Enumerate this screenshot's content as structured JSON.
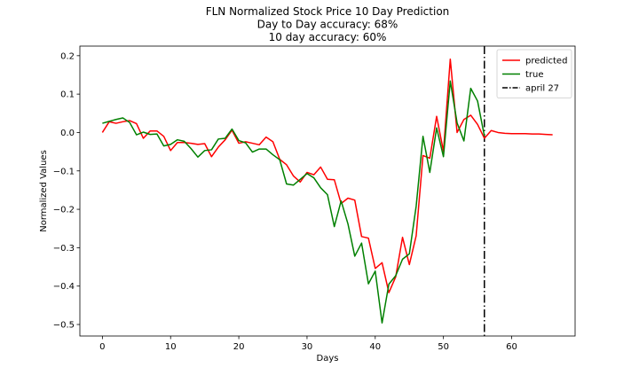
{
  "chart_data": {
    "type": "line",
    "title_lines": [
      "FLN Normalized Stock Price 10 Day Prediction",
      "Day to Day accuracy: 68%",
      "10 day accuracy: 60%"
    ],
    "xlabel": "Days",
    "ylabel": "Normalized Values",
    "xlim": [
      -3.3,
      69.3
    ],
    "ylim": [
      -0.53,
      0.225
    ],
    "xticks": [
      0,
      10,
      20,
      30,
      40,
      50,
      60
    ],
    "yticks": [
      0.2,
      0.1,
      0.0,
      -0.1,
      -0.2,
      -0.3,
      -0.4,
      -0.5
    ],
    "ytick_labels": [
      "0.2",
      "0.1",
      "0.0",
      "−0.1",
      "−0.2",
      "−0.3",
      "−0.4",
      "−0.5"
    ],
    "legend_position": "top-right",
    "series": [
      {
        "name": "predicted",
        "color": "#ff0000",
        "x": [
          0,
          1,
          2,
          3,
          4,
          5,
          6,
          7,
          8,
          9,
          10,
          11,
          12,
          13,
          14,
          15,
          16,
          17,
          18,
          19,
          20,
          21,
          22,
          23,
          24,
          25,
          26,
          27,
          28,
          29,
          30,
          31,
          32,
          33,
          34,
          35,
          36,
          37,
          38,
          39,
          40,
          41,
          42,
          43,
          44,
          45,
          46,
          47,
          48,
          49,
          50,
          51,
          52,
          53,
          54,
          55,
          56,
          57,
          58,
          59,
          60,
          61,
          62,
          63,
          64,
          65,
          66
        ],
        "values": [
          0.0,
          0.028,
          0.024,
          0.028,
          0.031,
          0.023,
          -0.015,
          0.004,
          0.004,
          -0.01,
          -0.047,
          -0.026,
          -0.026,
          -0.028,
          -0.031,
          -0.029,
          -0.063,
          -0.038,
          -0.019,
          0.006,
          -0.028,
          -0.024,
          -0.028,
          -0.032,
          -0.012,
          -0.024,
          -0.07,
          -0.084,
          -0.113,
          -0.129,
          -0.104,
          -0.11,
          -0.09,
          -0.122,
          -0.123,
          -0.185,
          -0.171,
          -0.176,
          -0.271,
          -0.275,
          -0.354,
          -0.339,
          -0.417,
          -0.376,
          -0.273,
          -0.344,
          -0.269,
          -0.06,
          -0.067,
          0.042,
          -0.049,
          0.191,
          0.0,
          0.034,
          0.045,
          0.021,
          -0.015,
          0.005,
          0.0,
          -0.002,
          -0.003,
          -0.003,
          -0.003,
          -0.004,
          -0.004,
          -0.005,
          -0.006
        ]
      },
      {
        "name": "true",
        "color": "#008000",
        "x": [
          0,
          1,
          2,
          3,
          4,
          5,
          6,
          7,
          8,
          9,
          10,
          11,
          12,
          13,
          14,
          15,
          16,
          17,
          18,
          19,
          20,
          21,
          22,
          23,
          24,
          25,
          26,
          27,
          28,
          29,
          30,
          31,
          32,
          33,
          34,
          35,
          36,
          37,
          38,
          39,
          40,
          41,
          42,
          43,
          44,
          45,
          46,
          47,
          48,
          49,
          50,
          51,
          52,
          53,
          54,
          55,
          56
        ],
        "values": [
          0.024,
          0.029,
          0.034,
          0.038,
          0.026,
          -0.006,
          0.001,
          -0.005,
          -0.004,
          -0.035,
          -0.031,
          -0.019,
          -0.023,
          -0.042,
          -0.064,
          -0.047,
          -0.045,
          -0.017,
          -0.015,
          0.009,
          -0.021,
          -0.027,
          -0.051,
          -0.043,
          -0.043,
          -0.058,
          -0.071,
          -0.134,
          -0.137,
          -0.122,
          -0.107,
          -0.118,
          -0.144,
          -0.162,
          -0.245,
          -0.178,
          -0.238,
          -0.322,
          -0.288,
          -0.394,
          -0.361,
          -0.496,
          -0.395,
          -0.373,
          -0.33,
          -0.316,
          -0.192,
          -0.01,
          -0.104,
          0.012,
          -0.063,
          0.134,
          0.025,
          -0.022,
          0.115,
          0.082,
          -0.009
        ]
      }
    ],
    "vline": {
      "x": 56,
      "label": "april 27",
      "color": "#000000"
    }
  }
}
